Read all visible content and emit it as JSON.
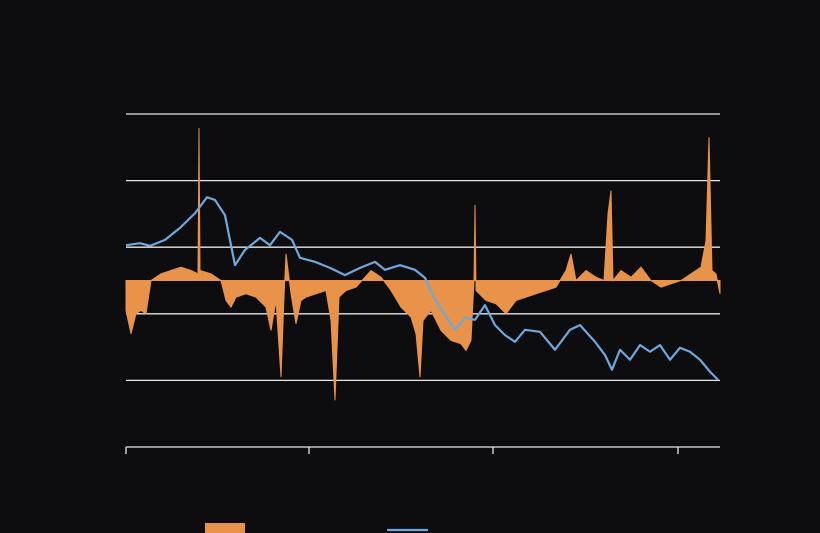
{
  "chart_data": {
    "type": "line",
    "xlim": [
      0,
      594
    ],
    "xticks": [
      0,
      183,
      367,
      552
    ],
    "ylim": [
      0,
      5
    ],
    "yticks": [
      0,
      1,
      2,
      3,
      4,
      5
    ],
    "y2lim": [
      -5,
      5
    ],
    "grid": true,
    "series": [
      {
        "type": "area",
        "axis": "y2",
        "color": "#e8924a",
        "x": [
          0,
          5,
          10,
          15,
          20,
          25,
          35,
          45,
          55,
          65,
          72,
          73,
          74,
          85,
          95,
          100,
          105,
          110,
          120,
          130,
          140,
          145,
          150,
          155,
          158,
          160,
          165,
          170,
          175,
          180,
          190,
          200,
          205,
          209,
          213,
          220,
          230,
          245,
          255,
          265,
          275,
          285,
          290,
          294,
          297,
          305,
          315,
          325,
          335,
          340,
          345,
          348,
          349,
          350,
          360,
          370,
          380,
          390,
          400,
          410,
          420,
          430,
          440,
          445,
          450,
          460,
          470,
          478,
          482,
          485,
          487,
          495,
          505,
          515,
          525,
          535,
          545,
          555,
          565,
          575,
          580,
          583,
          586,
          590,
          594
        ],
        "values": [
          -0.9,
          -1.6,
          -1.0,
          -0.9,
          -1.0,
          0.0,
          0.2,
          0.3,
          0.4,
          0.3,
          0.2,
          4.58,
          0.3,
          0.2,
          0.0,
          -0.6,
          -0.8,
          -0.5,
          -0.4,
          -0.5,
          -0.8,
          -1.5,
          -0.6,
          -2.9,
          -0.5,
          0.8,
          -0.4,
          -1.3,
          -0.6,
          -0.5,
          -0.4,
          -0.3,
          -1.2,
          -3.6,
          -0.5,
          -0.3,
          -0.2,
          0.3,
          0.1,
          -0.3,
          -0.8,
          -1.1,
          -1.6,
          -2.9,
          -1.2,
          -0.9,
          -1.5,
          -1.8,
          -1.9,
          -2.1,
          -1.8,
          0.0,
          2.27,
          -0.3,
          -0.6,
          -0.7,
          -1.0,
          -0.6,
          -0.5,
          -0.4,
          -0.3,
          -0.2,
          0.3,
          0.8,
          0.0,
          0.3,
          0.1,
          0.0,
          2.0,
          2.7,
          0.0,
          0.3,
          0.1,
          0.4,
          0.0,
          -0.2,
          -0.1,
          0.0,
          0.2,
          0.4,
          1.2,
          4.3,
          0.3,
          0.2,
          -0.4
        ]
      },
      {
        "type": "line",
        "axis": "y",
        "color": "#6fa8dc",
        "x": [
          0,
          14,
          24,
          39,
          54,
          69,
          81,
          89,
          99,
          109,
          119,
          134,
          144,
          154,
          166,
          174,
          189,
          204,
          219,
          234,
          249,
          259,
          274,
          289,
          299,
          309,
          319,
          329,
          339,
          349,
          359,
          369,
          379,
          389,
          399,
          414,
          429,
          444,
          454,
          469,
          479,
          486,
          494,
          504,
          514,
          524,
          534,
          544,
          554,
          564,
          574,
          584,
          592
        ],
        "values": [
          3.03,
          3.06,
          3.02,
          3.11,
          3.29,
          3.51,
          3.75,
          3.71,
          3.48,
          2.73,
          2.96,
          3.14,
          3.03,
          3.23,
          3.11,
          2.84,
          2.78,
          2.69,
          2.58,
          2.69,
          2.78,
          2.66,
          2.73,
          2.66,
          2.54,
          2.21,
          1.98,
          1.76,
          1.94,
          1.91,
          2.13,
          1.83,
          1.68,
          1.58,
          1.76,
          1.73,
          1.46,
          1.76,
          1.83,
          1.58,
          1.38,
          1.16,
          1.46,
          1.31,
          1.53,
          1.43,
          1.53,
          1.31,
          1.49,
          1.43,
          1.31,
          1.13,
          1.01
        ]
      }
    ]
  }
}
